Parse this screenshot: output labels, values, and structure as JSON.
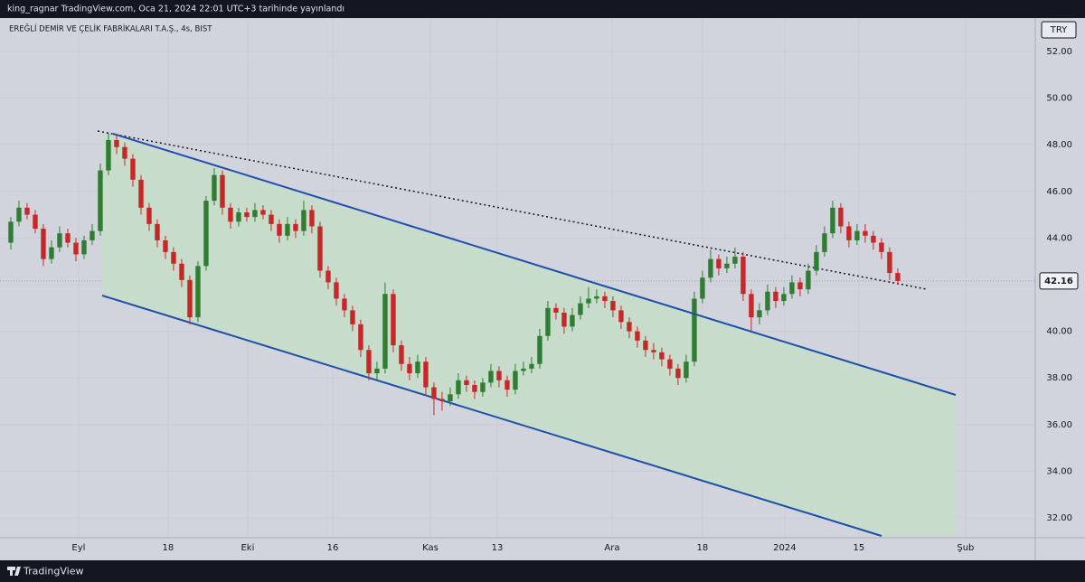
{
  "header": {
    "publisher": "king_ragnar TradingView.com, Oca 21, 2024 22:01 UTC+3 tarihinde yayınlandı"
  },
  "chart_data": {
    "type": "candlestick",
    "title": "EREĞLİ DEMİR VE ÇELİK FABRİKALARI T.A.Ş., 4s, BIST",
    "currency": "TRY",
    "up_color": "#2e7d32",
    "down_color": "#c62828",
    "open": [
      43.8,
      44.7,
      45.3,
      45.0,
      44.4,
      43.1,
      43.6,
      44.2,
      43.8,
      43.3,
      43.9,
      44.3,
      46.9,
      48.2,
      47.9,
      47.4,
      46.5,
      45.3,
      44.6,
      43.9,
      43.4,
      42.9,
      42.2,
      40.6,
      42.8,
      45.6,
      46.7,
      45.3,
      44.7,
      45.1,
      44.9,
      45.2,
      45.0,
      44.6,
      44.1,
      44.6,
      44.3,
      45.2,
      44.5,
      42.6,
      42.1,
      41.4,
      40.9,
      40.3,
      39.2,
      38.2,
      38.4,
      41.6,
      39.4,
      38.6,
      38.2,
      38.7,
      37.6,
      37.1,
      37.0,
      37.3,
      37.9,
      37.7,
      37.4,
      37.8,
      38.3,
      37.9,
      37.5,
      38.3,
      38.4,
      38.6,
      39.8,
      41.0,
      40.8,
      40.2,
      40.7,
      41.2,
      41.4,
      41.5,
      41.3,
      40.9,
      40.4,
      40.0,
      39.6,
      39.2,
      39.1,
      38.8,
      38.4,
      38.0,
      38.7,
      41.4,
      42.3,
      43.1,
      42.7,
      42.9,
      43.2,
      41.6,
      40.6,
      40.9,
      41.7,
      41.3,
      41.6,
      42.1,
      41.8,
      42.6,
      43.4,
      44.2,
      45.3,
      44.5,
      43.9,
      44.3,
      44.1,
      43.8,
      43.4,
      42.5
    ],
    "high": [
      44.9,
      45.6,
      45.5,
      45.2,
      44.6,
      43.9,
      44.5,
      44.4,
      44.0,
      44.1,
      44.6,
      47.2,
      48.5,
      48.4,
      48.1,
      47.6,
      46.7,
      45.5,
      44.8,
      44.1,
      43.6,
      43.1,
      42.4,
      43.0,
      45.8,
      47.0,
      46.9,
      45.5,
      45.3,
      45.3,
      45.5,
      45.4,
      45.2,
      44.8,
      44.9,
      44.8,
      45.6,
      45.4,
      44.7,
      42.8,
      42.3,
      41.6,
      41.1,
      40.5,
      39.4,
      38.7,
      42.1,
      41.8,
      39.6,
      38.9,
      39.0,
      38.9,
      37.8,
      37.4,
      37.6,
      38.2,
      38.1,
      37.9,
      38.0,
      38.6,
      38.5,
      38.1,
      38.6,
      38.7,
      38.9,
      40.1,
      41.3,
      41.2,
      41.0,
      41.0,
      41.5,
      41.9,
      41.8,
      41.7,
      41.5,
      41.1,
      40.6,
      40.2,
      39.8,
      39.5,
      39.3,
      39.0,
      38.6,
      39.0,
      41.7,
      42.6,
      43.5,
      43.3,
      43.2,
      43.6,
      43.4,
      41.8,
      41.2,
      42.0,
      41.9,
      41.9,
      42.4,
      42.3,
      42.9,
      43.7,
      44.5,
      45.6,
      45.5,
      44.7,
      44.6,
      44.6,
      44.3,
      44.0,
      43.6,
      42.7
    ],
    "low": [
      43.5,
      44.5,
      44.8,
      44.2,
      42.8,
      42.9,
      43.4,
      43.6,
      43.0,
      43.1,
      43.7,
      44.1,
      46.7,
      47.6,
      47.1,
      46.2,
      45.0,
      44.3,
      43.6,
      43.1,
      42.6,
      41.9,
      40.3,
      40.4,
      42.6,
      45.4,
      45.0,
      44.4,
      44.5,
      44.7,
      44.7,
      44.8,
      44.3,
      43.8,
      43.9,
      44.0,
      44.1,
      44.2,
      42.3,
      41.8,
      41.1,
      40.6,
      40.0,
      38.9,
      37.9,
      37.9,
      38.2,
      39.1,
      38.3,
      37.9,
      38.0,
      37.3,
      36.4,
      36.6,
      36.8,
      37.1,
      37.4,
      37.1,
      37.2,
      37.6,
      37.6,
      37.2,
      37.3,
      38.1,
      38.2,
      38.4,
      39.6,
      40.5,
      39.9,
      40.0,
      40.5,
      41.0,
      41.2,
      41.0,
      40.6,
      40.1,
      39.7,
      39.3,
      38.9,
      38.8,
      38.5,
      38.1,
      37.7,
      37.8,
      38.5,
      41.2,
      42.1,
      42.4,
      42.5,
      42.7,
      41.3,
      40.0,
      40.3,
      40.7,
      41.0,
      41.1,
      41.4,
      41.5,
      41.6,
      42.4,
      43.2,
      44.0,
      44.2,
      43.6,
      43.7,
      43.8,
      43.5,
      43.1,
      42.2,
      42.0
    ],
    "close": [
      44.7,
      45.3,
      45.0,
      44.4,
      43.1,
      43.6,
      44.2,
      43.8,
      43.3,
      43.9,
      44.3,
      46.9,
      48.2,
      47.9,
      47.4,
      46.5,
      45.3,
      44.6,
      43.9,
      43.4,
      42.9,
      42.2,
      40.6,
      42.8,
      45.6,
      46.7,
      45.3,
      44.7,
      45.1,
      44.9,
      45.2,
      45.0,
      44.6,
      44.1,
      44.6,
      44.3,
      45.2,
      44.5,
      42.6,
      42.1,
      41.4,
      40.9,
      40.3,
      39.2,
      38.2,
      38.4,
      41.6,
      39.4,
      38.6,
      38.2,
      38.7,
      37.6,
      37.1,
      37.0,
      37.3,
      37.9,
      37.7,
      37.4,
      37.8,
      38.3,
      37.9,
      37.5,
      38.3,
      38.4,
      38.6,
      39.8,
      41.0,
      40.8,
      40.2,
      40.7,
      41.2,
      41.4,
      41.5,
      41.3,
      40.9,
      40.4,
      40.0,
      39.6,
      39.2,
      39.1,
      38.8,
      38.4,
      38.0,
      38.7,
      41.4,
      42.3,
      43.1,
      42.7,
      42.9,
      43.2,
      41.6,
      40.6,
      40.9,
      41.7,
      41.3,
      41.6,
      42.1,
      41.8,
      42.6,
      43.4,
      44.2,
      45.3,
      44.5,
      43.9,
      44.3,
      44.1,
      43.8,
      43.4,
      42.5,
      42.16
    ],
    "last_price": 42.16,
    "ylim": [
      31.15,
      53.43
    ],
    "yticks": [
      {
        "value": 32,
        "label": "32.00"
      },
      {
        "value": 34,
        "label": "34.00"
      },
      {
        "value": 36,
        "label": "36.00"
      },
      {
        "value": 38,
        "label": "38.00"
      },
      {
        "value": 40,
        "label": "40.00"
      },
      {
        "value": 42,
        "label": "42.00"
      },
      {
        "value": 44,
        "label": "44.00"
      },
      {
        "value": 46,
        "label": "46.00"
      },
      {
        "value": 48,
        "label": "48.00"
      },
      {
        "value": 50,
        "label": "50.00"
      },
      {
        "value": 52,
        "label": "52.00"
      }
    ],
    "xlim": [
      -1.33,
      125.9
    ],
    "xticks": [
      {
        "value": 8.33,
        "label": "Eyl"
      },
      {
        "value": 19.33,
        "label": "18"
      },
      {
        "value": 29.11,
        "label": "Eki"
      },
      {
        "value": 39.56,
        "label": "16"
      },
      {
        "value": 51.56,
        "label": "Kas"
      },
      {
        "value": 59.78,
        "label": "13"
      },
      {
        "value": 73.89,
        "label": "Ara"
      },
      {
        "value": 85,
        "label": "18"
      },
      {
        "value": 95.11,
        "label": "2024"
      },
      {
        "value": 104.22,
        "label": "15"
      },
      {
        "value": 117.33,
        "label": "Şub"
      }
    ]
  },
  "footer": {
    "brand": "TradingView"
  }
}
